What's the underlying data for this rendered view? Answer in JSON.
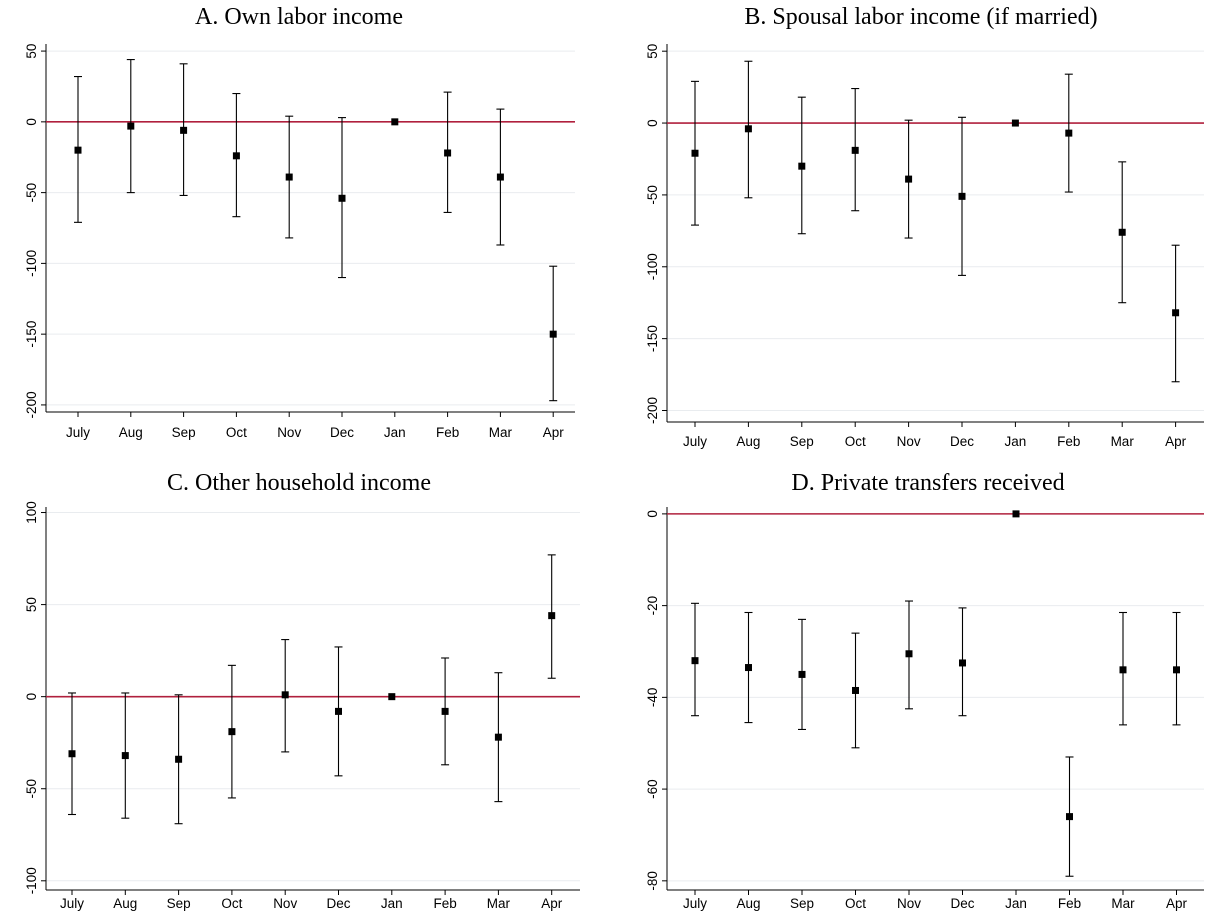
{
  "chart_data": [
    {
      "type": "scatter",
      "title": "A. Own labor income",
      "categories": [
        "July",
        "Aug",
        "Sep",
        "Oct",
        "Nov",
        "Dec",
        "Jan",
        "Feb",
        "Mar",
        "Apr"
      ],
      "point": [
        -20,
        -3,
        -6,
        -24,
        -39,
        -54,
        0,
        -22,
        -39,
        -150
      ],
      "ci_low": [
        -71,
        -50,
        -52,
        -67,
        -82,
        -110,
        0,
        -64,
        -87,
        -197
      ],
      "ci_high": [
        32,
        44,
        41,
        20,
        4,
        3,
        0,
        21,
        9,
        -102
      ],
      "yticks": [
        50,
        0,
        -50,
        -100,
        -150,
        -200
      ],
      "ylim": [
        -205,
        55
      ],
      "reference_line": 0,
      "grid": true
    },
    {
      "type": "scatter",
      "title": "B. Spousal labor income (if married)",
      "categories": [
        "July",
        "Aug",
        "Sep",
        "Oct",
        "Nov",
        "Dec",
        "Jan",
        "Feb",
        "Mar",
        "Apr"
      ],
      "point": [
        -21,
        -4,
        -30,
        -19,
        -39,
        -51,
        0,
        -7,
        -76,
        -132
      ],
      "ci_low": [
        -71,
        -52,
        -77,
        -61,
        -80,
        -106,
        0,
        -48,
        -125,
        -180
      ],
      "ci_high": [
        29,
        43,
        18,
        24,
        2,
        4,
        0,
        34,
        -27,
        -85
      ],
      "yticks": [
        50,
        0,
        -50,
        -100,
        -150,
        -200
      ],
      "ylim": [
        -208,
        55
      ],
      "reference_line": 0,
      "grid": true
    },
    {
      "type": "scatter",
      "title": "C. Other household income",
      "categories": [
        "July",
        "Aug",
        "Sep",
        "Oct",
        "Nov",
        "Dec",
        "Jan",
        "Feb",
        "Mar",
        "Apr"
      ],
      "point": [
        -31,
        -32,
        -34,
        -19,
        1,
        -8,
        0,
        -8,
        -22,
        44
      ],
      "ci_low": [
        -64,
        -66,
        -69,
        -55,
        -30,
        -43,
        0,
        -37,
        -57,
        10
      ],
      "ci_high": [
        2,
        2,
        1,
        17,
        31,
        27,
        0,
        21,
        13,
        77
      ],
      "yticks": [
        100,
        50,
        0,
        -50,
        -100
      ],
      "ylim": [
        -105,
        103
      ],
      "reference_line": 0,
      "grid": true
    },
    {
      "type": "scatter",
      "title": "D. Private transfers received",
      "categories": [
        "July",
        "Aug",
        "Sep",
        "Oct",
        "Nov",
        "Dec",
        "Jan",
        "Feb",
        "Mar",
        "Apr"
      ],
      "point": [
        -32,
        -33.5,
        -35,
        -38.5,
        -30.5,
        -32.5,
        0,
        -66,
        -34,
        -34
      ],
      "ci_low": [
        -44,
        -45.5,
        -47,
        -51,
        -42.5,
        -44,
        0,
        -79,
        -46,
        -46
      ],
      "ci_high": [
        -19.5,
        -21.5,
        -23,
        -26,
        -19,
        -20.5,
        0,
        -53,
        -21.5,
        -21.5
      ],
      "yticks": [
        0,
        -20,
        -40,
        -60,
        -80
      ],
      "ylim": [
        -82,
        1.5
      ],
      "reference_line": 0,
      "grid": true
    }
  ]
}
